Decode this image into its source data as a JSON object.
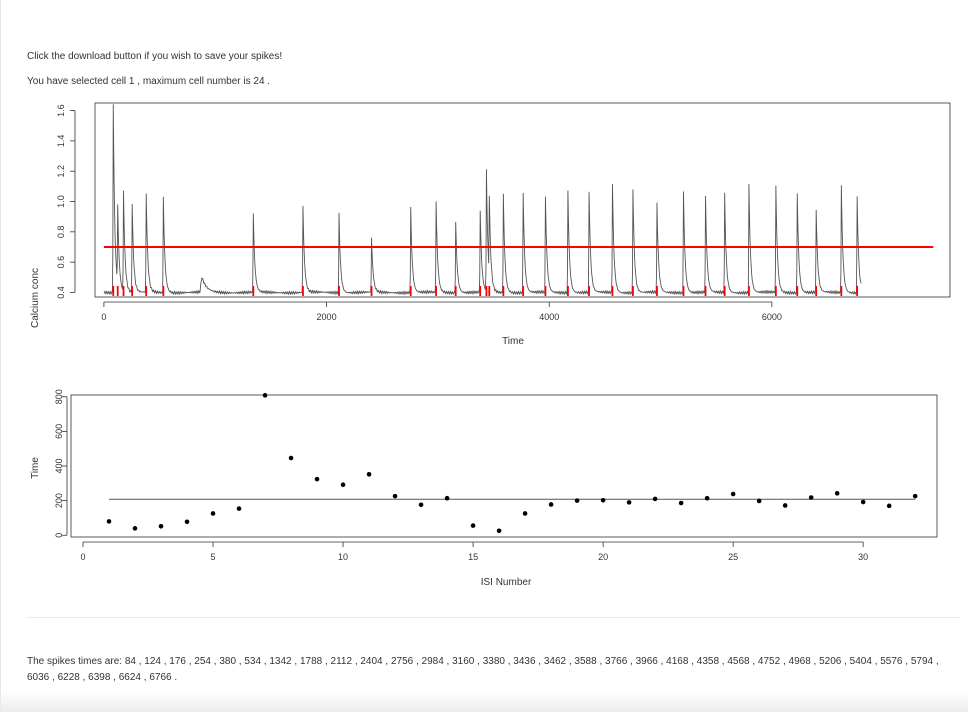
{
  "messages": {
    "download_hint": "Click the download button if you wish to save your spikes!",
    "cell_selection": "You have selected cell 1 , maximum cell number is 24 ."
  },
  "spike_times_text": "The spikes times are: 84 , 124 , 176 , 254 , 380 , 534 , 1342 , 1788 , 2112 , 2404 , 2756 , 2984 , 3160 , 3380 , 3436 , 3462 , 3588 , 3766 , 3966 , 4168 , 4358 , 4568 , 4752 , 4968 , 5206 , 5404 , 5576 , 5794 , 6036 , 6228 , 6398 , 6624 , 6766 .",
  "colors": {
    "trace": "#555555",
    "threshold": "#ff0000",
    "spike_marks": "#ff0000",
    "isi_points": "#000000",
    "isi_mean_line": "#555555"
  },
  "chart_data": [
    {
      "type": "line",
      "xlabel": "Time",
      "ylabel": "Calcium conc",
      "xlim": [
        -80,
        7600
      ],
      "ylim": [
        0.37,
        1.65
      ],
      "x_ticks": [
        0,
        2000,
        4000,
        6000
      ],
      "y_ticks": [
        0.4,
        0.6,
        0.8,
        1.0,
        1.2,
        1.4,
        1.6
      ],
      "x_tick_labels": [
        "0",
        "2000",
        "4000",
        "6000"
      ],
      "y_tick_labels": [
        "0.4",
        "0.6",
        "0.8",
        "1.0",
        "1.2",
        "1.4",
        "1.6"
      ],
      "trace_end": 6800,
      "baseline": 0.4,
      "threshold": {
        "value": 0.7,
        "x_range": [
          0,
          7450
        ]
      },
      "spikes": [
        {
          "t": 84,
          "peak": 1.65
        },
        {
          "t": 124,
          "peak": 0.91
        },
        {
          "t": 176,
          "peak": 1.06
        },
        {
          "t": 254,
          "peak": 0.98
        },
        {
          "t": 380,
          "peak": 1.05
        },
        {
          "t": 534,
          "peak": 1.03
        },
        {
          "t": 1342,
          "peak": 0.92
        },
        {
          "t": 1788,
          "peak": 0.97
        },
        {
          "t": 2112,
          "peak": 0.92
        },
        {
          "t": 2404,
          "peak": 0.76
        },
        {
          "t": 2756,
          "peak": 0.96
        },
        {
          "t": 2984,
          "peak": 1.0
        },
        {
          "t": 3160,
          "peak": 0.87
        },
        {
          "t": 3380,
          "peak": 0.94
        },
        {
          "t": 3436,
          "peak": 1.2
        },
        {
          "t": 3462,
          "peak": 0.92
        },
        {
          "t": 3588,
          "peak": 1.05
        },
        {
          "t": 3766,
          "peak": 1.06
        },
        {
          "t": 3966,
          "peak": 1.04
        },
        {
          "t": 4168,
          "peak": 1.07
        },
        {
          "t": 4358,
          "peak": 1.07
        },
        {
          "t": 4568,
          "peak": 1.12
        },
        {
          "t": 4752,
          "peak": 1.09
        },
        {
          "t": 4968,
          "peak": 0.99
        },
        {
          "t": 5206,
          "peak": 1.07
        },
        {
          "t": 5404,
          "peak": 1.03
        },
        {
          "t": 5576,
          "peak": 1.05
        },
        {
          "t": 5794,
          "peak": 1.11
        },
        {
          "t": 6036,
          "peak": 1.1
        },
        {
          "t": 6228,
          "peak": 1.06
        },
        {
          "t": 6398,
          "peak": 0.95
        },
        {
          "t": 6624,
          "peak": 1.11
        },
        {
          "t": 6766,
          "peak": 1.03
        }
      ],
      "bumps": [
        {
          "t": 880,
          "peak": 0.5
        }
      ]
    },
    {
      "type": "scatter",
      "xlabel": "ISI Number",
      "ylabel": "Time",
      "xlim": [
        0,
        33.3
      ],
      "ylim": [
        -10,
        810
      ],
      "x_ticks": [
        0,
        5,
        10,
        15,
        20,
        25,
        30
      ],
      "y_ticks": [
        0,
        200,
        400,
        600,
        800
      ],
      "x_tick_labels": [
        "0",
        "5",
        "10",
        "15",
        "20",
        "25",
        "30"
      ],
      "y_tick_labels": [
        "0",
        "200",
        "400",
        "600",
        "800"
      ],
      "x": [
        1,
        2,
        3,
        4,
        5,
        6,
        7,
        8,
        9,
        10,
        11,
        12,
        13,
        14,
        15,
        16,
        17,
        18,
        19,
        20,
        21,
        22,
        23,
        24,
        25,
        26,
        27,
        28,
        29,
        30,
        31,
        32
      ],
      "y": [
        80,
        40,
        52,
        78,
        126,
        154,
        808,
        446,
        324,
        292,
        352,
        226,
        176,
        214,
        56,
        26,
        126,
        178,
        200,
        202,
        190,
        210,
        186,
        214,
        238,
        198,
        172,
        218,
        242,
        192,
        170,
        226
      ],
      "mean_line": 208
    }
  ]
}
